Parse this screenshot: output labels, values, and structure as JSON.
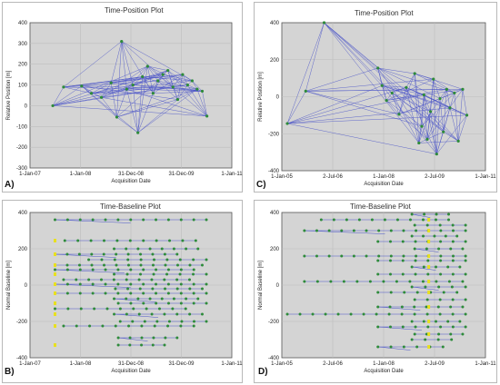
{
  "colors": {
    "plot_bg": "#d4d4d4",
    "grid": "#bdbdbd",
    "edge": "#4a54c8",
    "node_green": "#2e8b3a",
    "node_yellow": "#e8e020"
  },
  "panels": [
    {
      "letter": "A)",
      "title": "Time-Position Plot",
      "xlabel": "Acquisition Date",
      "ylabel": "Relative Position [m]",
      "xticks": [
        "1-Jan-07",
        "1-Jan-08",
        "31-Dec-08",
        "31-Dec-09",
        "1-Jan-11"
      ],
      "yticks": [
        "-300",
        "-200",
        "-100",
        "0",
        "100",
        "200",
        "300",
        "400"
      ]
    },
    {
      "letter": "C)",
      "title": "Time-Position Plot",
      "xlabel": "Acquisition Date",
      "ylabel": "Relative Position [m]",
      "xticks": [
        "1-Jan-05",
        "2-Jul-06",
        "1-Jan-08",
        "2-Jul-09",
        "1-Jan-11"
      ],
      "yticks": [
        "-400",
        "-200",
        "0",
        "200",
        "400"
      ]
    },
    {
      "letter": "B)",
      "title": "Time-Baseline Plot",
      "xlabel": "Acquisition Date",
      "ylabel": "Normal Baseline [m]",
      "xticks": [
        "1-Jan-07",
        "1-Jan-08",
        "31-Dec-08",
        "31-Dec-09",
        "1-Jan-11"
      ],
      "yticks": [
        "-400",
        "-200",
        "0",
        "200",
        "400"
      ]
    },
    {
      "letter": "D)",
      "title": "Time-Baseline Plot",
      "xlabel": "Acquisition Date",
      "ylabel": "Normal Baseline [m]",
      "xticks": [
        "1-Jan-05",
        "2-Jul-06",
        "1-Jan-08",
        "2-Jul-09",
        "1-Jan-11"
      ],
      "yticks": [
        "-400",
        "-200",
        "0",
        "200",
        "400"
      ]
    }
  ],
  "chart_data": [
    {
      "type": "scatter",
      "title": "Time-Position Plot",
      "xlabel": "Acquisition Date",
      "ylabel": "Relative Position [m]",
      "xlim": [
        "2007-01-01",
        "2011-01-01"
      ],
      "ylim": [
        -300,
        400
      ],
      "grid": true,
      "nodes": [
        {
          "date": "2007-06-15",
          "y": 0
        },
        {
          "date": "2007-09-01",
          "y": 90
        },
        {
          "date": "2008-01-10",
          "y": 95
        },
        {
          "date": "2008-03-20",
          "y": 60
        },
        {
          "date": "2008-06-01",
          "y": 40
        },
        {
          "date": "2008-08-10",
          "y": 110
        },
        {
          "date": "2008-09-20",
          "y": -55
        },
        {
          "date": "2008-10-25",
          "y": 310
        },
        {
          "date": "2008-12-01",
          "y": 80
        },
        {
          "date": "2009-01-15",
          "y": 100
        },
        {
          "date": "2009-02-20",
          "y": -130
        },
        {
          "date": "2009-03-25",
          "y": 140
        },
        {
          "date": "2009-05-01",
          "y": 190
        },
        {
          "date": "2009-06-10",
          "y": 60
        },
        {
          "date": "2009-07-15",
          "y": 120
        },
        {
          "date": "2009-08-20",
          "y": 150
        },
        {
          "date": "2009-09-25",
          "y": 170
        },
        {
          "date": "2009-11-01",
          "y": 90
        },
        {
          "date": "2009-12-05",
          "y": 30
        },
        {
          "date": "2010-01-10",
          "y": 150
        },
        {
          "date": "2010-02-15",
          "y": 100
        },
        {
          "date": "2010-03-20",
          "y": 120
        },
        {
          "date": "2010-04-25",
          "y": 80
        },
        {
          "date": "2010-06-01",
          "y": 70
        },
        {
          "date": "2010-07-05",
          "y": -50
        }
      ]
    },
    {
      "type": "scatter",
      "title": "Time-Position Plot",
      "xlabel": "Acquisition Date",
      "ylabel": "Relative Position [m]",
      "xlim": [
        "2005-01-01",
        "2011-01-01"
      ],
      "ylim": [
        -400,
        400
      ],
      "grid": true,
      "nodes": [
        {
          "date": "2005-03-01",
          "y": -145
        },
        {
          "date": "2005-09-15",
          "y": 30
        },
        {
          "date": "2006-04-01",
          "y": 400
        },
        {
          "date": "2007-11-01",
          "y": 155
        },
        {
          "date": "2007-12-15",
          "y": 60
        },
        {
          "date": "2008-02-01",
          "y": -20
        },
        {
          "date": "2008-04-01",
          "y": 20
        },
        {
          "date": "2008-06-15",
          "y": -95
        },
        {
          "date": "2008-09-01",
          "y": 50
        },
        {
          "date": "2008-12-01",
          "y": 125
        },
        {
          "date": "2009-01-15",
          "y": -250
        },
        {
          "date": "2009-02-15",
          "y": -160
        },
        {
          "date": "2009-03-10",
          "y": 10
        },
        {
          "date": "2009-04-15",
          "y": -230
        },
        {
          "date": "2009-05-20",
          "y": -80
        },
        {
          "date": "2009-06-20",
          "y": 95
        },
        {
          "date": "2009-07-25",
          "y": -310
        },
        {
          "date": "2009-08-30",
          "y": -10
        },
        {
          "date": "2009-10-05",
          "y": -190
        },
        {
          "date": "2009-11-10",
          "y": 40
        },
        {
          "date": "2009-12-15",
          "y": -60
        },
        {
          "date": "2010-02-01",
          "y": 20
        },
        {
          "date": "2010-03-15",
          "y": -240
        },
        {
          "date": "2010-05-01",
          "y": 40
        },
        {
          "date": "2010-06-15",
          "y": -100
        }
      ]
    },
    {
      "type": "scatter",
      "title": "Time-Baseline Plot",
      "xlabel": "Acquisition Date",
      "ylabel": "Normal Baseline [m]",
      "xlim": [
        "2007-01-01",
        "2011-01-01"
      ],
      "ylim": [
        -400,
        400
      ],
      "grid": true,
      "yellow_date": "2007-07-01",
      "rows": [
        {
          "y": 360,
          "start": "2007-07-01",
          "end": "2010-07-01"
        },
        {
          "y": 245,
          "start": "2007-09-10",
          "end": "2010-04-15"
        },
        {
          "y": 200,
          "start": "2008-09-01",
          "end": "2010-05-01"
        },
        {
          "y": 170,
          "start": "2007-07-01",
          "end": "2009-12-01"
        },
        {
          "y": 140,
          "start": "2008-03-01",
          "end": "2010-07-01"
        },
        {
          "y": 110,
          "start": "2007-07-01",
          "end": "2010-06-01"
        },
        {
          "y": 85,
          "start": "2007-07-01",
          "end": "2010-04-01"
        },
        {
          "y": 60,
          "start": "2008-09-01",
          "end": "2010-07-01"
        },
        {
          "y": 30,
          "start": "2007-09-01",
          "end": "2010-03-01"
        },
        {
          "y": 5,
          "start": "2007-07-01",
          "end": "2010-07-01"
        },
        {
          "y": -20,
          "start": "2008-09-10",
          "end": "2010-06-01"
        },
        {
          "y": -45,
          "start": "2007-07-01",
          "end": "2010-07-01"
        },
        {
          "y": -75,
          "start": "2008-09-01",
          "end": "2010-05-01"
        },
        {
          "y": -100,
          "start": "2008-10-01",
          "end": "2010-07-01"
        },
        {
          "y": -130,
          "start": "2007-07-01",
          "end": "2010-02-01"
        },
        {
          "y": -160,
          "start": "2008-09-01",
          "end": "2010-06-01"
        },
        {
          "y": -200,
          "start": "2008-10-15",
          "end": "2010-07-01"
        },
        {
          "y": -225,
          "start": "2007-09-01",
          "end": "2010-04-01"
        },
        {
          "y": -290,
          "start": "2008-10-01",
          "end": "2009-12-01"
        },
        {
          "y": -330,
          "start": "2008-10-01",
          "end": "2009-09-01"
        }
      ]
    },
    {
      "type": "scatter",
      "title": "Time-Baseline Plot",
      "xlabel": "Acquisition Date",
      "ylabel": "Normal Baseline [m]",
      "xlim": [
        "2005-01-01",
        "2011-01-01"
      ],
      "ylim": [
        -400,
        400
      ],
      "grid": true,
      "yellow_date": "2009-05-01",
      "rows": [
        {
          "y": 390,
          "start": "2008-11-01",
          "end": "2009-12-01"
        },
        {
          "y": 360,
          "start": "2006-03-01",
          "end": "2009-12-01"
        },
        {
          "y": 330,
          "start": "2008-12-01",
          "end": "2010-06-01"
        },
        {
          "y": 300,
          "start": "2005-09-01",
          "end": "2010-06-01"
        },
        {
          "y": 270,
          "start": "2008-11-01",
          "end": "2010-03-01"
        },
        {
          "y": 240,
          "start": "2007-11-01",
          "end": "2010-06-01"
        },
        {
          "y": 200,
          "start": "2008-12-01",
          "end": "2010-05-01"
        },
        {
          "y": 160,
          "start": "2005-09-01",
          "end": "2010-06-01"
        },
        {
          "y": 135,
          "start": "2007-11-01",
          "end": "2010-06-01"
        },
        {
          "y": 100,
          "start": "2008-11-01",
          "end": "2010-04-01"
        },
        {
          "y": 60,
          "start": "2007-11-01",
          "end": "2010-06-01"
        },
        {
          "y": 20,
          "start": "2005-09-01",
          "end": "2010-05-01"
        },
        {
          "y": -10,
          "start": "2008-11-01",
          "end": "2010-06-01"
        },
        {
          "y": -40,
          "start": "2007-11-01",
          "end": "2010-03-01"
        },
        {
          "y": -80,
          "start": "2008-12-01",
          "end": "2010-06-01"
        },
        {
          "y": -120,
          "start": "2007-11-01",
          "end": "2010-05-01"
        },
        {
          "y": -160,
          "start": "2005-03-01",
          "end": "2010-06-01"
        },
        {
          "y": -200,
          "start": "2008-11-01",
          "end": "2010-04-01"
        },
        {
          "y": -230,
          "start": "2007-11-01",
          "end": "2010-06-01"
        },
        {
          "y": -270,
          "start": "2008-12-01",
          "end": "2010-05-01"
        },
        {
          "y": -300,
          "start": "2008-11-01",
          "end": "2010-01-01"
        },
        {
          "y": -340,
          "start": "2007-11-01",
          "end": "2009-10-01"
        }
      ]
    }
  ]
}
